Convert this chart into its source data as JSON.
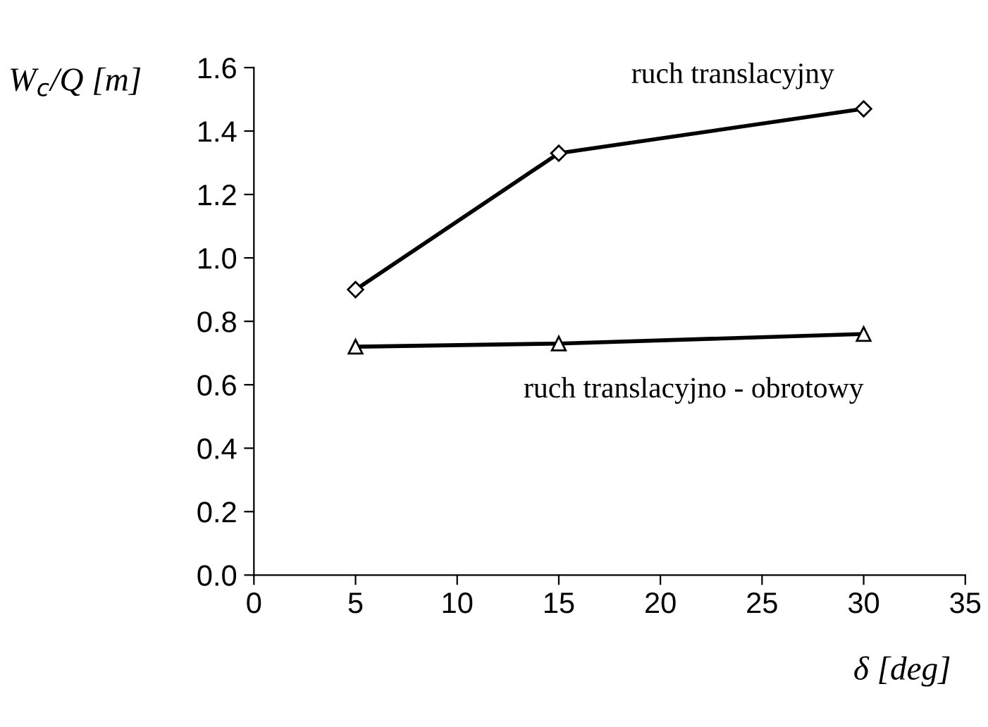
{
  "chart_data": {
    "type": "line",
    "xlabel": "δ [deg]",
    "ylabel": "W$_{c}$/Q [m]",
    "x": [
      5,
      15,
      30
    ],
    "series": [
      {
        "name": "ruch translacyjny",
        "color": "#000000",
        "values": [
          0.9,
          1.33,
          1.47
        ],
        "marker": "diamond"
      },
      {
        "name": "ruch translacyjno - obrotowy",
        "color": "#000000",
        "values": [
          0.72,
          0.73,
          0.76
        ],
        "marker": "triangle"
      }
    ],
    "xlim": [
      0,
      35
    ],
    "xticks": [
      0,
      5,
      10,
      15,
      20,
      25,
      30,
      35
    ],
    "ylim": [
      0,
      1.6
    ],
    "yticks": [
      {
        "value": 0,
        "label": "0.0"
      },
      {
        "value": 0.2,
        "label": "0.2"
      },
      {
        "value": 0.4,
        "label": "0.4"
      },
      {
        "value": 0.6,
        "label": "0.6"
      },
      {
        "value": 0.8,
        "label": "0.8"
      },
      {
        "value": 1.0,
        "label": "1.0"
      },
      {
        "value": 1.2,
        "label": "1.2"
      },
      {
        "value": 1.4,
        "label": "1.4"
      },
      {
        "value": 1.6,
        "label": "1.6"
      }
    ],
    "grid": false,
    "legend": false,
    "line_style": "solid"
  }
}
